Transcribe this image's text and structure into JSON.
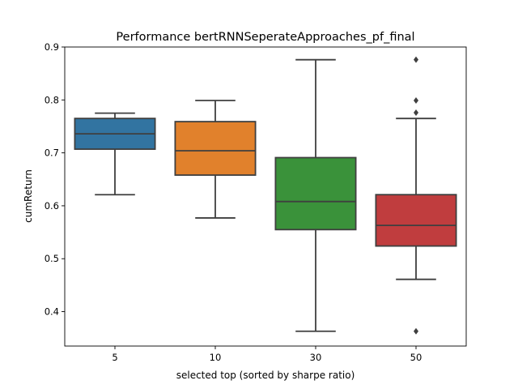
{
  "chart_data": {
    "type": "box",
    "title": "Performance bertRNNSeperateApproaches_pf_final",
    "xlabel": "selected top (sorted by sharpe ratio)",
    "ylabel": "cumReturn",
    "categories": [
      "5",
      "10",
      "30",
      "50"
    ],
    "ylim": [
      0.335,
      0.9
    ],
    "yticks": [
      0.4,
      0.5,
      0.6,
      0.7,
      0.8,
      0.9
    ],
    "ytick_labels": [
      "0.4",
      "0.5",
      "0.6",
      "0.7",
      "0.8",
      "0.9"
    ],
    "grid": false,
    "boxes": [
      {
        "category": "5",
        "color": "#3274a1",
        "whisker_low": 0.621,
        "q1": 0.707,
        "median": 0.736,
        "q3": 0.765,
        "whisker_high": 0.775,
        "outliers": []
      },
      {
        "category": "10",
        "color": "#e1812c",
        "whisker_low": 0.577,
        "q1": 0.658,
        "median": 0.704,
        "q3": 0.759,
        "whisker_high": 0.799,
        "outliers": []
      },
      {
        "category": "30",
        "color": "#3a923a",
        "whisker_low": 0.363,
        "q1": 0.555,
        "median": 0.608,
        "q3": 0.691,
        "whisker_high": 0.876,
        "outliers": []
      },
      {
        "category": "50",
        "color": "#c03d3e",
        "whisker_low": 0.461,
        "q1": 0.524,
        "median": 0.563,
        "q3": 0.621,
        "whisker_high": 0.765,
        "outliers": [
          0.876,
          0.799,
          0.776,
          0.363
        ]
      }
    ]
  }
}
